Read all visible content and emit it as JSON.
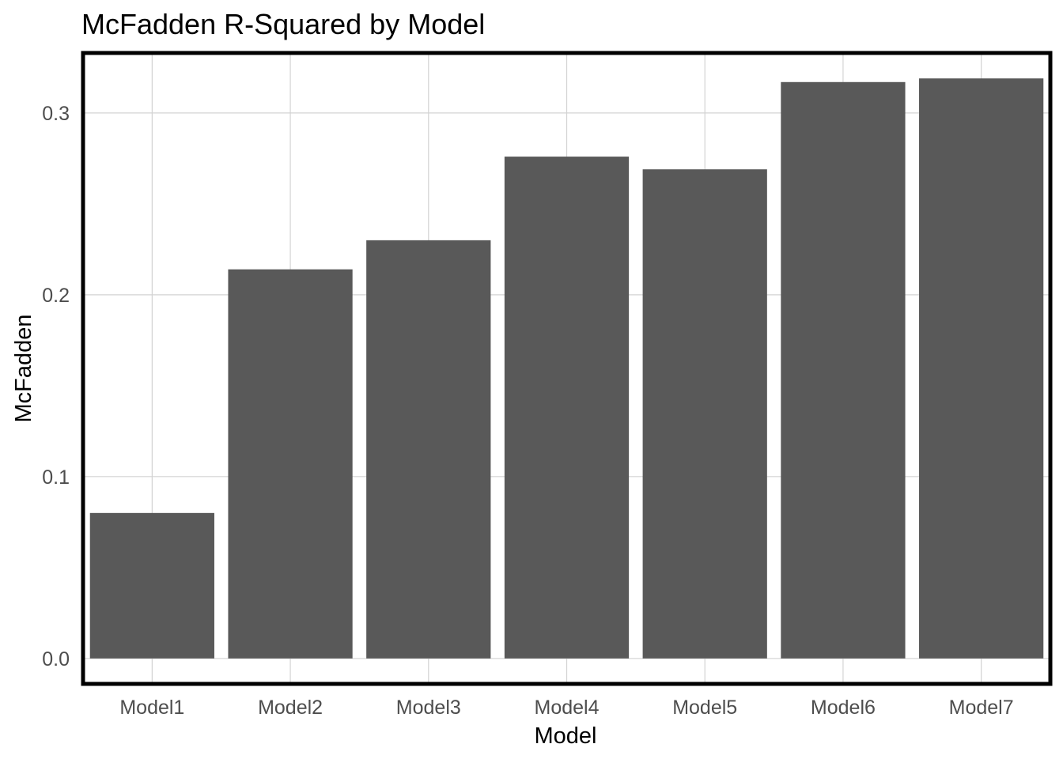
{
  "chart_data": {
    "type": "bar",
    "title": "McFadden R-Squared by Model",
    "xlabel": "Model",
    "ylabel": "McFadden",
    "categories": [
      "Model1",
      "Model2",
      "Model3",
      "Model4",
      "Model5",
      "Model6",
      "Model7"
    ],
    "values": [
      0.08,
      0.214,
      0.23,
      0.276,
      0.269,
      0.317,
      0.319
    ],
    "ylim": [
      -0.014,
      0.333
    ],
    "yticks": [
      0.0,
      0.1,
      0.2,
      0.3
    ],
    "ytick_labels": [
      "0.0",
      "0.1",
      "0.2",
      "0.3"
    ],
    "grid": true,
    "legend": "none",
    "colors": {
      "bar": "#595959",
      "grid": "#d3d3d3",
      "border": "#000000",
      "tick_text": "#4d4d4d"
    }
  }
}
